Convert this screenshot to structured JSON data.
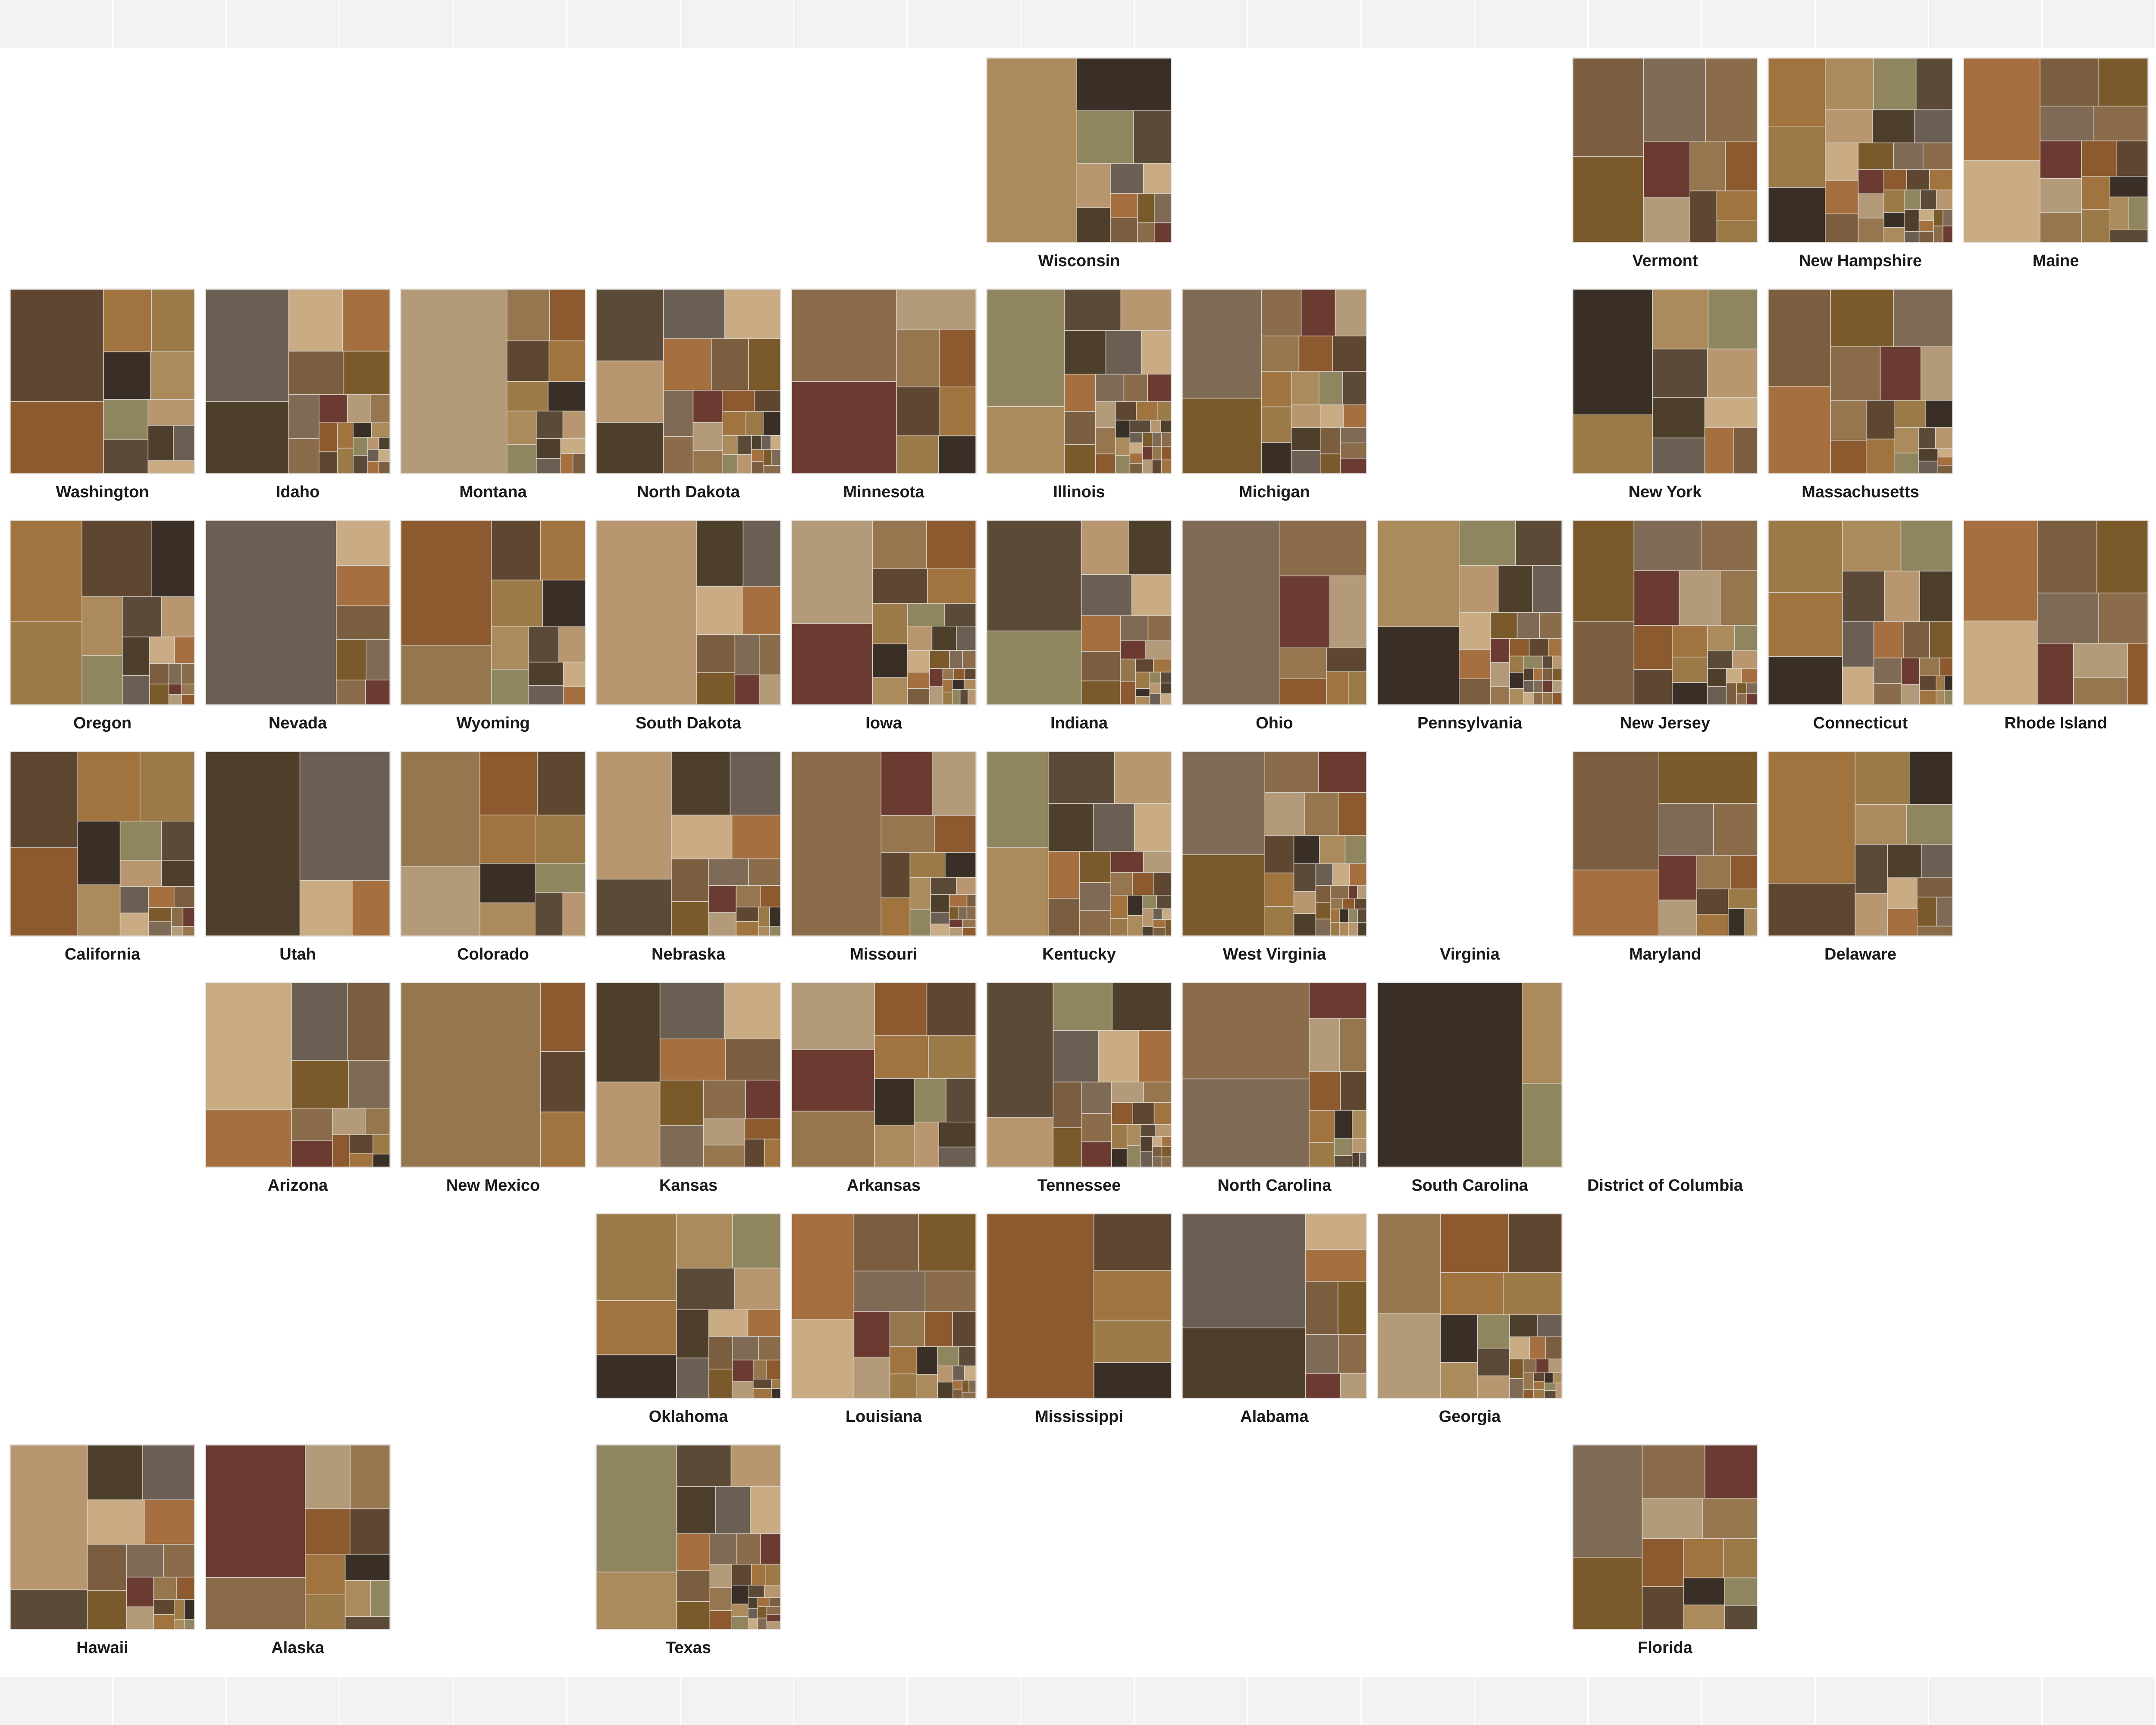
{
  "chart_data": {
    "type": "treemap",
    "title": "",
    "palette": [
      "#3a2f26",
      "#5c4a38",
      "#6b5e52",
      "#7b5e3f",
      "#8a6c4a",
      "#96764f",
      "#a0733f",
      "#ab8a5c",
      "#b89770",
      "#c9ab84",
      "#7a5a2a",
      "#6b3b32",
      "#8c5a2e",
      "#9b7a48",
      "#8f865f",
      "#4d3f2c",
      "#a56f3f",
      "#7f6a55",
      "#b39a78",
      "#5e4630"
    ],
    "states": [
      {
        "name": "Wisconsin",
        "row": 0,
        "col": 5,
        "weights": [
          30,
          100,
          18,
          12,
          9,
          7,
          6,
          5,
          4,
          4,
          3,
          3,
          2,
          2
        ]
      },
      {
        "name": "Vermont",
        "row": 0,
        "col": 8,
        "weights": [
          40,
          35,
          30,
          25,
          15,
          12,
          10,
          9,
          8,
          7,
          5
        ]
      },
      {
        "name": "New Hampshire",
        "row": 0,
        "col": 9,
        "weights": [
          25,
          22,
          20,
          16,
          14,
          12,
          10,
          9,
          8,
          8,
          7,
          6,
          6,
          5,
          5,
          4,
          4,
          4,
          3,
          3,
          3,
          3,
          2,
          2,
          2,
          2,
          2,
          2,
          1,
          1,
          1,
          1,
          1,
          1,
          1,
          1
        ]
      },
      {
        "name": "Maine",
        "row": 0,
        "col": 10,
        "weights": [
          40,
          50,
          18,
          15,
          12,
          12,
          10,
          9,
          8,
          8,
          7,
          6,
          6,
          5,
          4,
          4,
          3
        ]
      },
      {
        "name": "Washington",
        "row": 1,
        "col": 0,
        "weights": [
          45,
          70,
          20,
          18,
          15,
          14,
          12,
          10,
          8,
          6,
          5,
          4
        ]
      },
      {
        "name": "Idaho",
        "row": 1,
        "col": 1,
        "weights": [
          45,
          70,
          25,
          22,
          18,
          15,
          10,
          8,
          6,
          5,
          4,
          4,
          3,
          3,
          3,
          2,
          2,
          2,
          2,
          1,
          1,
          1,
          1,
          1,
          1
        ]
      },
      {
        "name": "Montana",
        "row": 1,
        "col": 2,
        "weights": [
          160,
          18,
          15,
          14,
          12,
          10,
          9,
          8,
          7,
          6,
          5,
          4,
          3,
          3,
          2,
          2
        ]
      },
      {
        "name": "North Dakota",
        "row": 1,
        "col": 3,
        "weights": [
          35,
          30,
          25,
          22,
          20,
          18,
          14,
          12,
          10,
          8,
          7,
          6,
          5,
          5,
          4,
          4,
          3,
          3,
          2,
          2,
          2,
          2,
          1,
          1,
          1,
          1,
          1,
          1,
          1,
          1
        ]
      },
      {
        "name": "Minnesota",
        "row": 1,
        "col": 4,
        "weights": [
          55,
          55,
          18,
          14,
          12,
          12,
          10,
          9,
          8
        ]
      },
      {
        "name": "Illinois",
        "row": 1,
        "col": 5,
        "weights": [
          40,
          70,
          18,
          16,
          14,
          12,
          10,
          9,
          8,
          7,
          6,
          5,
          5,
          4,
          4,
          3,
          3,
          3,
          2,
          2,
          2,
          2,
          2,
          1,
          1,
          1,
          1,
          1,
          1,
          1,
          1,
          1,
          1,
          1,
          1,
          1,
          1,
          1
        ]
      },
      {
        "name": "Michigan",
        "row": 1,
        "col": 6,
        "weights": [
          45,
          65,
          14,
          12,
          11,
          10,
          9,
          9,
          8,
          8,
          7,
          7,
          6,
          6,
          5,
          5,
          5,
          4,
          4,
          4,
          3,
          3,
          3,
          3
        ]
      },
      {
        "name": "New York",
        "row": 1,
        "col": 8,
        "weights": [
          35,
          75,
          25,
          22,
          20,
          18,
          16,
          14,
          12,
          10,
          8
        ]
      },
      {
        "name": "Massachusetts",
        "row": 1,
        "col": 9,
        "weights": [
          45,
          50,
          30,
          28,
          22,
          18,
          14,
          12,
          10,
          9,
          8,
          7,
          6,
          5,
          4,
          3,
          3,
          2,
          2,
          1,
          1,
          1
        ]
      },
      {
        "name": "Oregon",
        "row": 2,
        "col": 0,
        "weights": [
          40,
          55,
          45,
          25,
          18,
          15,
          12,
          10,
          8,
          6,
          5,
          4,
          3,
          3,
          2,
          2,
          1,
          1,
          1,
          1
        ]
      },
      {
        "name": "Nevada",
        "row": 2,
        "col": 1,
        "weights": [
          200,
          20,
          18,
          15,
          10,
          8,
          6,
          5
        ]
      },
      {
        "name": "Wyoming",
        "row": 2,
        "col": 2,
        "weights": [
          40,
          85,
          22,
          20,
          18,
          15,
          12,
          10,
          8,
          7,
          6,
          5,
          4,
          3
        ]
      },
      {
        "name": "South Dakota",
        "row": 2,
        "col": 3,
        "weights": [
          150,
          25,
          20,
          18,
          15,
          12,
          10,
          8,
          7,
          6,
          5
        ]
      },
      {
        "name": "Iowa",
        "row": 2,
        "col": 4,
        "weights": [
          55,
          70,
          22,
          20,
          16,
          14,
          12,
          10,
          8,
          7,
          6,
          5,
          5,
          4,
          4,
          3,
          3,
          3,
          2,
          2,
          2,
          2,
          1,
          1,
          1,
          1,
          1,
          1,
          1,
          1,
          1,
          1
        ]
      },
      {
        "name": "Indiana",
        "row": 2,
        "col": 5,
        "weights": [
          60,
          90,
          22,
          20,
          18,
          14,
          12,
          10,
          8,
          6,
          5,
          4,
          4,
          3,
          3,
          2,
          2,
          2,
          1,
          1,
          1,
          1,
          1,
          1,
          1,
          1
        ]
      },
      {
        "name": "Ohio",
        "row": 2,
        "col": 6,
        "weights": [
          150,
          40,
          30,
          22,
          12,
          10,
          8,
          6,
          5
        ]
      },
      {
        "name": "Pennsylvania",
        "row": 2,
        "col": 7,
        "weights": [
          55,
          75,
          22,
          18,
          16,
          14,
          12,
          10,
          8,
          7,
          6,
          5,
          5,
          4,
          4,
          3,
          3,
          3,
          2,
          2,
          2,
          2,
          2,
          1,
          1,
          1,
          1,
          1,
          1,
          1,
          1,
          1,
          1,
          1,
          1,
          1,
          1
        ]
      },
      {
        "name": "New Jersey",
        "row": 2,
        "col": 8,
        "weights": [
          45,
          55,
          30,
          25,
          22,
          20,
          18,
          15,
          12,
          10,
          8,
          7,
          6,
          5,
          4,
          4,
          3,
          3,
          2,
          2,
          2,
          1,
          1,
          1,
          1
        ]
      },
      {
        "name": "Connecticut",
        "row": 2,
        "col": 9,
        "weights": [
          40,
          45,
          30,
          25,
          22,
          18,
          15,
          14,
          12,
          10,
          9,
          8,
          7,
          6,
          5,
          4,
          3,
          3,
          2,
          2,
          2,
          1,
          1,
          1,
          1
        ]
      },
      {
        "name": "Rhode Island",
        "row": 2,
        "col": 10,
        "weights": [
          50,
          60,
          35,
          30,
          25,
          20,
          18,
          15,
          12,
          10
        ]
      },
      {
        "name": "California",
        "row": 3,
        "col": 0,
        "weights": [
          55,
          60,
          40,
          35,
          25,
          20,
          15,
          12,
          10,
          8,
          7,
          6,
          5,
          4,
          3,
          3,
          2,
          2,
          1,
          1
        ]
      },
      {
        "name": "Utah",
        "row": 3,
        "col": 1,
        "weights": [
          150,
          100,
          25,
          18
        ]
      },
      {
        "name": "Colorado",
        "row": 3,
        "col": 2,
        "weights": [
          45,
          75,
          30,
          25,
          22,
          20,
          18,
          15,
          12,
          10,
          8
        ]
      },
      {
        "name": "Nebraska",
        "row": 3,
        "col": 3,
        "weights": [
          40,
          90,
          35,
          30,
          25,
          20,
          15,
          12,
          10,
          8,
          7,
          6,
          5,
          4,
          3,
          3,
          2,
          2,
          1,
          1
        ]
      },
      {
        "name": "Missouri",
        "row": 3,
        "col": 4,
        "weights": [
          150,
          30,
          25,
          18,
          14,
          12,
          10,
          8,
          7,
          6,
          5,
          4,
          3,
          3,
          2,
          2,
          2,
          1,
          1,
          1,
          1,
          1,
          1,
          1,
          1
        ]
      },
      {
        "name": "Kentucky",
        "row": 3,
        "col": 5,
        "weights": [
          55,
          60,
          35,
          30,
          22,
          20,
          18,
          15,
          12,
          10,
          9,
          8,
          7,
          6,
          5,
          5,
          4,
          4,
          3,
          3,
          3,
          2,
          2,
          2,
          1,
          1,
          1,
          1,
          1,
          1
        ]
      },
      {
        "name": "West Virginia",
        "row": 3,
        "col": 6,
        "weights": [
          55,
          70,
          18,
          16,
          14,
          12,
          10,
          9,
          8,
          7,
          6,
          6,
          5,
          5,
          4,
          4,
          3,
          3,
          3,
          2,
          2,
          2,
          2,
          1,
          1,
          1,
          1,
          1,
          1,
          1,
          1,
          1,
          1,
          1,
          1,
          1
        ]
      },
      {
        "name": "Virginia",
        "row": 3,
        "col": 7,
        "weights": []
      },
      {
        "name": "Maryland",
        "row": 3,
        "col": 8,
        "weights": [
          50,
          90,
          45,
          25,
          20,
          15,
          12,
          10,
          8,
          7,
          6,
          5,
          4,
          3
        ]
      },
      {
        "name": "Delaware",
        "row": 3,
        "col": 9,
        "weights": [
          40,
          100,
          25,
          20,
          18,
          16,
          14,
          12,
          10,
          9,
          8,
          7,
          6,
          5,
          4,
          3
        ]
      },
      {
        "name": "Arizona",
        "row": 4,
        "col": 1,
        "weights": [
          40,
          100,
          45,
          30,
          25,
          18,
          12,
          10,
          8,
          6,
          5,
          4,
          3,
          3,
          2
        ]
      },
      {
        "name": "New Mexico",
        "row": 4,
        "col": 2,
        "weights": [
          210,
          25,
          22,
          20
        ]
      },
      {
        "name": "Kansas",
        "row": 4,
        "col": 3,
        "weights": [
          60,
          70,
          40,
          35,
          30,
          25,
          22,
          20,
          18,
          15,
          12,
          10,
          8,
          6,
          5
        ]
      },
      {
        "name": "Arkansas",
        "row": 4,
        "col": 4,
        "weights": [
          55,
          60,
          50,
          30,
          28,
          25,
          22,
          20,
          18,
          15,
          14,
          12,
          10,
          8
        ]
      },
      {
        "name": "Tennessee",
        "row": 4,
        "col": 5,
        "weights": [
          30,
          95,
          35,
          30,
          25,
          22,
          18,
          14,
          12,
          10,
          9,
          8,
          7,
          6,
          5,
          5,
          4,
          4,
          3,
          3,
          3,
          2,
          2,
          2,
          2,
          1,
          1,
          1,
          1,
          1,
          1
        ]
      },
      {
        "name": "North Carolina",
        "row": 4,
        "col": 6,
        "weights": [
          110,
          120,
          20,
          16,
          14,
          12,
          10,
          8,
          6,
          5,
          4,
          3,
          2,
          2,
          1,
          1
        ]
      },
      {
        "name": "South Carolina",
        "row": 4,
        "col": 7,
        "weights": [
          200,
          30,
          25
        ]
      },
      {
        "name": "District of Columbia",
        "row": 4,
        "col": 8,
        "weights": []
      },
      {
        "name": "Oklahoma",
        "row": 5,
        "col": 3,
        "weights": [
          50,
          80,
          40,
          35,
          30,
          28,
          22,
          18,
          15,
          12,
          10,
          9,
          8,
          7,
          6,
          5,
          4,
          3,
          3,
          2,
          2,
          1,
          1
        ]
      },
      {
        "name": "Louisiana",
        "row": 5,
        "col": 4,
        "weights": [
          60,
          80,
          45,
          40,
          35,
          25,
          20,
          18,
          15,
          12,
          10,
          9,
          8,
          7,
          6,
          5,
          4,
          3,
          3,
          2,
          2,
          1,
          1,
          1,
          1,
          1
        ]
      },
      {
        "name": "Mississippi",
        "row": 5,
        "col": 5,
        "weights": [
          180,
          40,
          35,
          30,
          25
        ]
      },
      {
        "name": "Alabama",
        "row": 5,
        "col": 6,
        "weights": [
          80,
          130,
          20,
          18,
          16,
          14,
          12,
          10,
          8,
          6
        ]
      },
      {
        "name": "Georgia",
        "row": 5,
        "col": 7,
        "weights": [
          60,
          70,
          45,
          35,
          30,
          28,
          20,
          15,
          12,
          10,
          8,
          7,
          6,
          5,
          4,
          4,
          3,
          3,
          2,
          2,
          2,
          2,
          1,
          1,
          1,
          1,
          1,
          1,
          1,
          1,
          1
        ]
      },
      {
        "name": "Hawaii",
        "row": 6,
        "col": 0,
        "weights": [
          30,
          110,
          30,
          28,
          25,
          22,
          18,
          15,
          12,
          10,
          8,
          6,
          5,
          4,
          3,
          3,
          2,
          2,
          1,
          1
        ]
      },
      {
        "name": "Alaska",
        "row": 6,
        "col": 1,
        "weights": [
          45,
          115,
          25,
          22,
          18,
          16,
          14,
          12,
          10,
          8,
          6,
          5
        ]
      },
      {
        "name": "Texas",
        "row": 6,
        "col": 3,
        "weights": [
          45,
          100,
          22,
          20,
          18,
          16,
          14,
          12,
          10,
          9,
          8,
          7,
          6,
          5,
          5,
          4,
          4,
          3,
          3,
          3,
          2,
          2,
          2,
          2,
          1,
          1,
          1,
          1,
          1,
          1,
          1,
          1,
          1,
          1
        ]
      },
      {
        "name": "Florida",
        "row": 6,
        "col": 8,
        "weights": [
          45,
          70,
          30,
          25,
          22,
          20,
          18,
          16,
          14,
          12,
          10,
          9,
          8,
          7
        ]
      }
    ]
  }
}
